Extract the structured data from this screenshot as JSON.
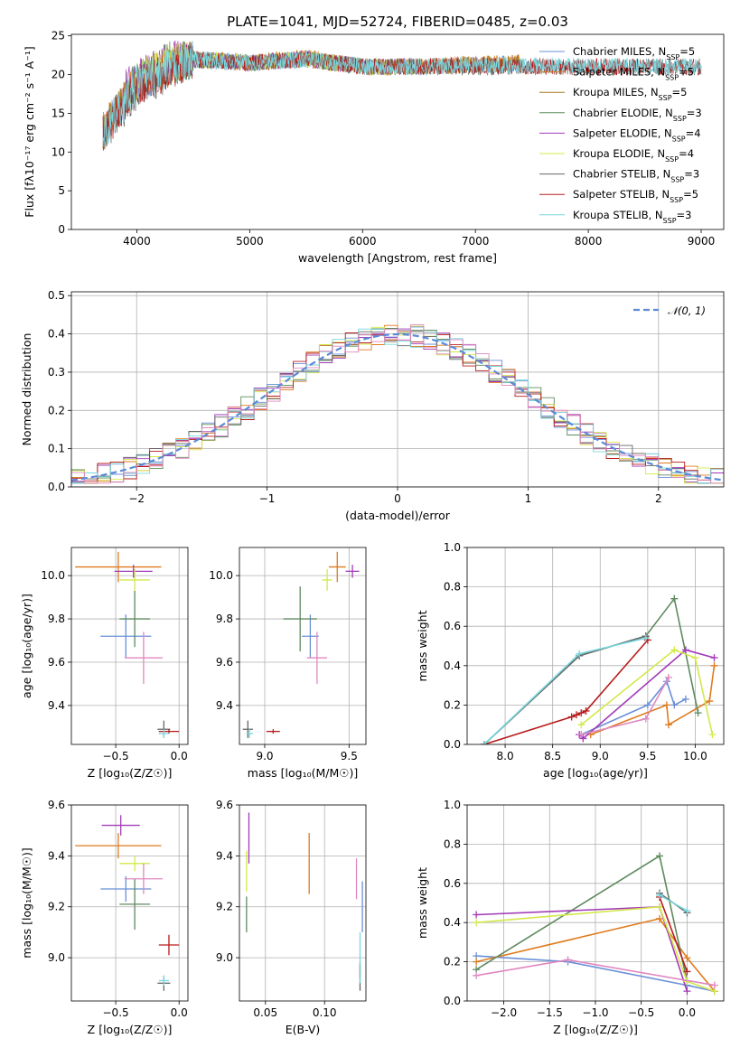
{
  "figure": {
    "title": "PLATE=1041, MJD=52724, FIBERID=0485, z=0.03"
  },
  "chart_data": [
    {
      "type": "line",
      "xlabel": "wavelength [Angstrom, rest frame]",
      "ylabel": "Flux [fλ10⁻¹⁷ erg cm⁻² s⁻¹ A⁻¹]",
      "xlim": [
        3420,
        9200
      ],
      "ylim": [
        0,
        25.2
      ],
      "xticks": [
        4000,
        5000,
        6000,
        7000,
        8000,
        9000
      ],
      "yticks": [
        0,
        5,
        10,
        15,
        20,
        25
      ],
      "legend_position": "top-right",
      "series": [
        {
          "name": "Chabrier MILES, N",
          "sub": "SSP",
          "suffix": "=5",
          "color": "#6a8fd8",
          "x": [
            3700,
            4000,
            4500,
            5000,
            5500,
            6000,
            6500,
            7000,
            7400
          ],
          "y": [
            13,
            19,
            22,
            21.5,
            22,
            21,
            21,
            21.3,
            21.5
          ]
        },
        {
          "name": "Salpeter MILES, N",
          "sub": "SSP",
          "suffix": "=5",
          "color": "#e07b1e",
          "x": [
            3700,
            4000,
            4500,
            5000,
            5500,
            6000,
            6500,
            7000,
            7400
          ],
          "y": [
            12.5,
            19.5,
            22,
            21.5,
            22.2,
            21,
            21,
            21.4,
            21.6
          ]
        },
        {
          "name": "Kroupa MILES, N",
          "sub": "SSP",
          "suffix": "=5",
          "color": "#a5781b",
          "x": [
            3700,
            4000,
            4500,
            5000,
            5500,
            6000,
            6500,
            7000,
            7400
          ],
          "y": [
            12.8,
            19.2,
            22,
            21.6,
            22,
            21.1,
            21,
            21.3,
            21.5
          ]
        },
        {
          "name": "Chabrier ELODIE, N",
          "sub": "SSP",
          "suffix": "=3",
          "color": "#5e8a5e",
          "x": [
            3900,
            4300,
            5000,
            5500,
            6000,
            6500
          ],
          "y": [
            18,
            22,
            21.5,
            22,
            21,
            21
          ]
        },
        {
          "name": "Salpeter ELODIE, N",
          "sub": "SSP",
          "suffix": "=4",
          "color": "#a23bb8",
          "x": [
            3900,
            4300,
            5000,
            5500,
            6000,
            6500
          ],
          "y": [
            18.5,
            22,
            21.5,
            22.1,
            21,
            21.1
          ]
        },
        {
          "name": "Kroupa ELODIE, N",
          "sub": "SSP",
          "suffix": "=4",
          "color": "#d3e84a",
          "x": [
            3900,
            4300,
            5000,
            5500,
            6000,
            6500
          ],
          "y": [
            18.2,
            22,
            21.6,
            22,
            21,
            21
          ]
        },
        {
          "name": "Chabrier STELIB, N",
          "sub": "SSP",
          "suffix": "=3",
          "color": "#666666",
          "x": [
            3700,
            4000,
            4500,
            5000,
            5500,
            6000,
            6500,
            7000,
            8000,
            9000
          ],
          "y": [
            12,
            18,
            22,
            21.5,
            22,
            21,
            21,
            21,
            21,
            21
          ]
        },
        {
          "name": "Salpeter STELIB, N",
          "sub": "SSP",
          "suffix": "=5",
          "color": "#b71c1c",
          "x": [
            3700,
            4000,
            4500,
            5000,
            5500,
            6000,
            6500,
            7000,
            8000,
            9000
          ],
          "y": [
            12.3,
            18.5,
            22,
            21.5,
            22,
            21,
            21,
            21.2,
            21,
            21
          ]
        },
        {
          "name": "Kroupa STELIB, N",
          "sub": "SSP",
          "suffix": "=3",
          "color": "#79d7de",
          "x": [
            3700,
            4000,
            4500,
            5000,
            5500,
            6000,
            6500,
            7000,
            8000,
            9000
          ],
          "y": [
            12,
            19,
            22,
            21.5,
            22,
            21.1,
            21,
            21.3,
            21.1,
            21
          ]
        }
      ]
    },
    {
      "type": "histogram",
      "xlabel": "(data-model)/error",
      "ylabel": "Normed distribution",
      "xlim": [
        -2.5,
        2.5
      ],
      "ylim": [
        0,
        0.51
      ],
      "xticks": [
        -2,
        -1,
        0,
        1,
        2
      ],
      "yticks": [
        0.0,
        0.1,
        0.2,
        0.3,
        0.4,
        0.5
      ],
      "legend": [
        "𝒩(0, 1)"
      ],
      "legend_color": "#5b8ad6",
      "legend_position": "top-right",
      "bin_width": 0.1
    },
    {
      "type": "scatter",
      "kind": "errorbar",
      "xlabel": "Z [log₁₀(Z/Z☉)]",
      "ylabel": "age  [log₁₀(age/yr)]",
      "xlim": [
        -0.85,
        0.07
      ],
      "ylim": [
        9.22,
        10.13
      ],
      "xticks": [
        -0.5,
        0.0
      ],
      "yticks": [
        9.4,
        9.6,
        9.8,
        10.0
      ],
      "points": [
        {
          "x": -0.42,
          "y": 9.72,
          "xerr": 0.2,
          "yerr": 0.1,
          "color": "#6a8fd8"
        },
        {
          "x": -0.48,
          "y": 10.04,
          "xerr": 0.34,
          "yerr": 0.07,
          "color": "#e07b1e"
        },
        {
          "x": -0.35,
          "y": 9.8,
          "xerr": 0.12,
          "yerr": 0.13,
          "color": "#5e8a5e"
        },
        {
          "x": -0.36,
          "y": 10.02,
          "xerr": 0.15,
          "yerr": 0.03,
          "color": "#a23bb8"
        },
        {
          "x": -0.35,
          "y": 9.98,
          "xerr": 0.12,
          "yerr": 0.05,
          "color": "#d3e84a"
        },
        {
          "x": -0.12,
          "y": 9.29,
          "xerr": 0.05,
          "yerr": 0.04,
          "color": "#666666"
        },
        {
          "x": -0.08,
          "y": 9.28,
          "xerr": 0.08,
          "yerr": 0.01,
          "color": "#b71c1c"
        },
        {
          "x": -0.12,
          "y": 9.27,
          "xerr": 0.04,
          "yerr": 0.02,
          "color": "#79d7de"
        },
        {
          "x": -0.28,
          "y": 9.62,
          "xerr": 0.15,
          "yerr": 0.12,
          "color": "#e088c0"
        }
      ]
    },
    {
      "type": "scatter",
      "kind": "errorbar",
      "xlabel": "mass [log₁₀(M/M☉)]",
      "ylabel": "",
      "xlim": [
        8.85,
        9.6
      ],
      "ylim": [
        9.22,
        10.13
      ],
      "xticks": [
        9.0,
        9.5
      ],
      "yticks": [
        9.4,
        9.6,
        9.8,
        10.0
      ],
      "points": [
        {
          "x": 9.27,
          "y": 9.72,
          "xerr": 0.05,
          "yerr": 0.1,
          "color": "#6a8fd8"
        },
        {
          "x": 9.43,
          "y": 10.04,
          "xerr": 0.05,
          "yerr": 0.07,
          "color": "#e07b1e"
        },
        {
          "x": 9.21,
          "y": 9.8,
          "xerr": 0.1,
          "yerr": 0.15,
          "color": "#5e8a5e"
        },
        {
          "x": 9.52,
          "y": 10.02,
          "xerr": 0.04,
          "yerr": 0.03,
          "color": "#a23bb8"
        },
        {
          "x": 9.37,
          "y": 9.98,
          "xerr": 0.03,
          "yerr": 0.05,
          "color": "#d3e84a"
        },
        {
          "x": 8.9,
          "y": 9.29,
          "xerr": 0.03,
          "yerr": 0.04,
          "color": "#666666"
        },
        {
          "x": 9.05,
          "y": 9.28,
          "xerr": 0.04,
          "yerr": 0.01,
          "color": "#b71c1c"
        },
        {
          "x": 8.91,
          "y": 9.27,
          "xerr": 0.02,
          "yerr": 0.02,
          "color": "#79d7de"
        },
        {
          "x": 9.31,
          "y": 9.62,
          "xerr": 0.06,
          "yerr": 0.12,
          "color": "#e088c0"
        }
      ]
    },
    {
      "type": "line",
      "xlabel": "age  [log₁₀(age/yr)]",
      "ylabel": "mass weight",
      "xlim": [
        7.6,
        10.3
      ],
      "ylim": [
        0,
        1.0
      ],
      "xticks": [
        8.0,
        8.5,
        9.0,
        9.5,
        10.0
      ],
      "yticks": [
        0.0,
        0.2,
        0.4,
        0.6,
        0.8,
        1.0
      ],
      "series": [
        {
          "color": "#6a8fd8",
          "x": [
            8.8,
            9.5,
            9.7,
            9.78,
            9.9
          ],
          "y": [
            0.05,
            0.2,
            0.32,
            0.2,
            0.23
          ]
        },
        {
          "color": "#e07b1e",
          "x": [
            8.9,
            9.7,
            9.72,
            10.15,
            10.2
          ],
          "y": [
            0.05,
            0.2,
            0.1,
            0.22,
            0.4
          ]
        },
        {
          "color": "#5e8a5e",
          "x": [
            7.78,
            8.78,
            9.48,
            9.78,
            10.03
          ],
          "y": [
            0.0,
            0.45,
            0.55,
            0.74,
            0.16
          ]
        },
        {
          "color": "#a23bb8",
          "x": [
            8.78,
            8.82,
            9.9,
            10.2
          ],
          "y": [
            0.05,
            0.03,
            0.48,
            0.44
          ]
        },
        {
          "color": "#d3e84a",
          "x": [
            8.8,
            9.78,
            10.0,
            10.18
          ],
          "y": [
            0.1,
            0.48,
            0.44,
            0.05
          ]
        },
        {
          "color": "#666666",
          "x": [
            7.78,
            8.78,
            9.48
          ],
          "y": [
            0.0,
            0.45,
            0.55
          ]
        },
        {
          "color": "#b71c1c",
          "x": [
            7.78,
            8.7,
            8.75,
            8.8,
            8.85,
            9.5
          ],
          "y": [
            0.0,
            0.14,
            0.15,
            0.16,
            0.17,
            0.53
          ]
        },
        {
          "color": "#79d7de",
          "x": [
            7.78,
            8.78,
            9.48
          ],
          "y": [
            0.0,
            0.46,
            0.54
          ]
        },
        {
          "color": "#e088c0",
          "x": [
            8.8,
            9.48,
            9.72
          ],
          "y": [
            0.05,
            0.13,
            0.34
          ]
        }
      ]
    },
    {
      "type": "scatter",
      "kind": "errorbar",
      "xlabel": "Z [log₁₀(Z/Z☉)]",
      "ylabel": "mass [log₁₀(M/M☉)]",
      "xlim": [
        -0.85,
        0.07
      ],
      "ylim": [
        8.83,
        9.6
      ],
      "xticks": [
        -0.5,
        0.0
      ],
      "yticks": [
        9.0,
        9.2,
        9.4,
        9.6
      ],
      "points": [
        {
          "x": -0.42,
          "y": 9.27,
          "xerr": 0.2,
          "yerr": 0.05,
          "color": "#6a8fd8"
        },
        {
          "x": -0.48,
          "y": 9.44,
          "xerr": 0.34,
          "yerr": 0.05,
          "color": "#e07b1e"
        },
        {
          "x": -0.35,
          "y": 9.21,
          "xerr": 0.12,
          "yerr": 0.1,
          "color": "#5e8a5e"
        },
        {
          "x": -0.46,
          "y": 9.52,
          "xerr": 0.15,
          "yerr": 0.04,
          "color": "#a23bb8"
        },
        {
          "x": -0.35,
          "y": 9.37,
          "xerr": 0.12,
          "yerr": 0.03,
          "color": "#d3e84a"
        },
        {
          "x": -0.12,
          "y": 8.9,
          "xerr": 0.05,
          "yerr": 0.03,
          "color": "#666666"
        },
        {
          "x": -0.08,
          "y": 9.05,
          "xerr": 0.08,
          "yerr": 0.04,
          "color": "#b71c1c"
        },
        {
          "x": -0.12,
          "y": 8.91,
          "xerr": 0.04,
          "yerr": 0.02,
          "color": "#79d7de"
        },
        {
          "x": -0.28,
          "y": 9.31,
          "xerr": 0.15,
          "yerr": 0.06,
          "color": "#e088c0"
        }
      ]
    },
    {
      "type": "scatter",
      "kind": "errorbar",
      "xlabel": "E(B-V)",
      "ylabel": "",
      "xlim": [
        0.028,
        0.135
      ],
      "ylim": [
        8.83,
        9.6
      ],
      "xticks": [
        0.05,
        0.1
      ],
      "yticks": [
        9.0,
        9.2,
        9.4,
        9.6
      ],
      "points": [
        {
          "x": 0.132,
          "y": 9.2,
          "xerr": 0.0,
          "yerr": 0.1,
          "color": "#6a8fd8"
        },
        {
          "x": 0.087,
          "y": 9.37,
          "xerr": 0.0,
          "yerr": 0.12,
          "color": "#e07b1e"
        },
        {
          "x": 0.034,
          "y": 9.17,
          "xerr": 0.0,
          "yerr": 0.07,
          "color": "#5e8a5e"
        },
        {
          "x": 0.036,
          "y": 9.47,
          "xerr": 0.0,
          "yerr": 0.1,
          "color": "#a23bb8"
        },
        {
          "x": 0.034,
          "y": 9.34,
          "xerr": 0.0,
          "yerr": 0.08,
          "color": "#d3e84a"
        },
        {
          "x": 0.13,
          "y": 8.92,
          "xerr": 0.0,
          "yerr": 0.05,
          "color": "#666666"
        },
        {
          "x": 0.13,
          "y": 8.95,
          "xerr": 0.0,
          "yerr": 0.03,
          "color": "#b71c1c"
        },
        {
          "x": 0.13,
          "y": 9.0,
          "xerr": 0.0,
          "yerr": 0.1,
          "color": "#79d7de"
        },
        {
          "x": 0.127,
          "y": 9.31,
          "xerr": 0.0,
          "yerr": 0.08,
          "color": "#e088c0"
        }
      ]
    },
    {
      "type": "line",
      "xlabel": "Z [log₁₀(Z/Z☉)]",
      "ylabel": "mass weight",
      "xlim": [
        -2.4,
        0.4
      ],
      "ylim": [
        0,
        1.0
      ],
      "xticks": [
        -2.0,
        -1.5,
        -1.0,
        -0.5,
        0.0
      ],
      "yticks": [
        0.0,
        0.2,
        0.4,
        0.6,
        0.8,
        1.0
      ],
      "series": [
        {
          "color": "#6a8fd8",
          "x": [
            -2.3,
            -1.3,
            0.0,
            0.3
          ],
          "y": [
            0.23,
            0.2,
            0.08,
            0.05
          ]
        },
        {
          "color": "#e07b1e",
          "x": [
            -2.3,
            -0.3,
            0.0,
            0.3
          ],
          "y": [
            0.2,
            0.42,
            0.22,
            0.05
          ]
        },
        {
          "color": "#5e8a5e",
          "x": [
            -2.3,
            -0.3,
            0.0
          ],
          "y": [
            0.16,
            0.74,
            0.1
          ]
        },
        {
          "color": "#a23bb8",
          "x": [
            -2.3,
            -0.3,
            0.0
          ],
          "y": [
            0.44,
            0.48,
            0.05
          ]
        },
        {
          "color": "#d3e84a",
          "x": [
            -2.3,
            -0.3,
            0.0,
            0.3
          ],
          "y": [
            0.4,
            0.48,
            0.1,
            0.05
          ]
        },
        {
          "color": "#666666",
          "x": [
            -0.3,
            0.0
          ],
          "y": [
            0.55,
            0.45
          ]
        },
        {
          "color": "#b71c1c",
          "x": [
            -0.3,
            0.0
          ],
          "y": [
            0.53,
            0.15
          ]
        },
        {
          "color": "#79d7de",
          "x": [
            -0.3,
            0.0
          ],
          "y": [
            0.54,
            0.46
          ]
        },
        {
          "color": "#e088c0",
          "x": [
            -2.3,
            -1.3,
            0.3
          ],
          "y": [
            0.13,
            0.21,
            0.08
          ]
        }
      ]
    }
  ]
}
